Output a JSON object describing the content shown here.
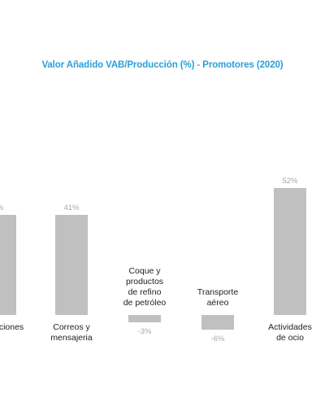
{
  "title": {
    "part1": "Valor Añadido VAB/Producción (%)",
    "sep": "-",
    "part2": "Promotores (2020)"
  },
  "colors": {
    "title": "#2a9fd8",
    "bar": "#c0c0c0",
    "label": "#222222",
    "value_label": "#a8a8a8",
    "background": "#ffffff"
  },
  "chart_data": {
    "type": "bar",
    "title": "Valor Añadido VAB/Producción (%) - Promotores (2020)",
    "categories": [
      [
        "...nicaciones"
      ],
      [
        "Correos y",
        "mensajeria"
      ],
      [
        "Coque y",
        "productos",
        "de refino",
        "de petróleo"
      ],
      [
        "Transporte",
        "aéreo"
      ],
      [
        "Actividades",
        "de ocio"
      ]
    ],
    "values": [
      41,
      41,
      -3,
      -6,
      52
    ],
    "value_labels": [
      "%",
      "41%",
      "-3%",
      "-6%",
      "52%"
    ],
    "xlabel": "",
    "ylabel": "",
    "grid": false,
    "legend": "none"
  }
}
